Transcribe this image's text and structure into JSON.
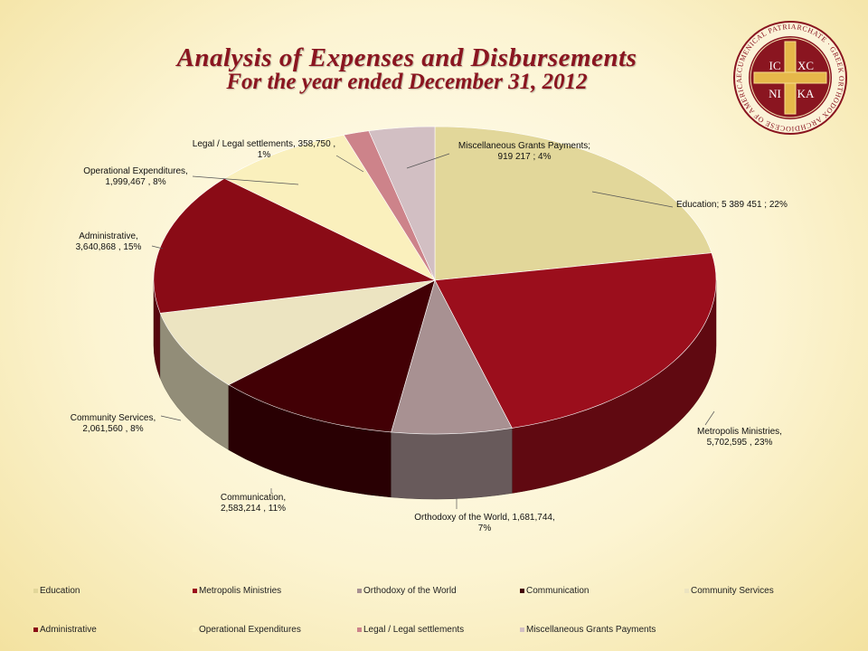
{
  "title": "Analysis of Expenses and Disbursements",
  "subtitle": "For the year ended December 31, 2012",
  "logo": {
    "ring_text": "ECUMENICAL PATRIARCHATE · GREEK ORTHODOX ARCHDIOCESE OF AMERICA",
    "cross_letters": [
      "IC",
      "XC",
      "NI",
      "KA"
    ]
  },
  "chart_data": {
    "type": "pie",
    "style": "3d",
    "slices": [
      {
        "name": "Education",
        "value": 5389451,
        "percent": 22,
        "color": "#e2d79a",
        "label": [
          "Education;  5 389 451 ; 22%"
        ]
      },
      {
        "name": "Metropolis Ministries",
        "value": 5702595,
        "percent": 23,
        "color": "#9b0e1c",
        "label": [
          "Metropolis Ministries,",
          "5,702,595 , 23%"
        ]
      },
      {
        "name": "Orthodoxy of the World",
        "value": 1681744,
        "percent": 7,
        "color": "#a89192",
        "label": [
          "Orthodoxy of the World,  1,681,744,",
          "7%"
        ]
      },
      {
        "name": "Communication",
        "value": 2583214,
        "percent": 11,
        "color": "#420005",
        "label": [
          "Communication,",
          "2,583,214 , 11%"
        ]
      },
      {
        "name": "Community Services",
        "value": 2061560,
        "percent": 8,
        "color": "#ece4c1",
        "label": [
          "Community Services,",
          "2,061,560 , 8%"
        ]
      },
      {
        "name": "Administrative",
        "value": 3640868,
        "percent": 15,
        "color": "#8a0b16",
        "label": [
          "Administrative,",
          "3,640,868 , 15%"
        ]
      },
      {
        "name": "Operational Expenditures",
        "value": 1999467,
        "percent": 8,
        "color": "#faf0bd",
        "label": [
          "Operational Expenditures,",
          "1,999,467 , 8%"
        ]
      },
      {
        "name": "Legal / Legal settlements",
        "value": 358750,
        "percent": 1,
        "color": "#cd838a",
        "label": [
          "Legal / Legal settlements,  358,750 ,",
          "1%"
        ]
      },
      {
        "name": "Miscellaneous Grants Payments",
        "value": 919217,
        "percent": 4,
        "color": "#d2bfc3",
        "label": [
          "Miscellaneous Grants Payments;",
          "919 217 ; 4%"
        ]
      }
    ],
    "legend": [
      "Education",
      "Metropolis Ministries",
      "Orthodoxy of the World",
      "Communication",
      "Community Services",
      "Administrative",
      "Operational Expenditures",
      "Legal / Legal settlements",
      "Miscellaneous Grants Payments"
    ],
    "legend_position": "bottom"
  }
}
